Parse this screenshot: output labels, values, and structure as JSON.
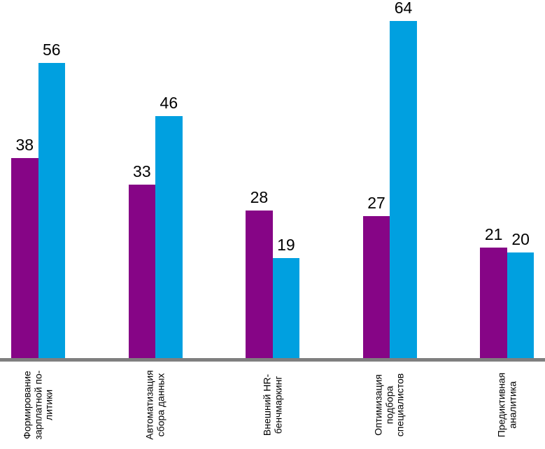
{
  "chart_data": {
    "type": "bar",
    "orientation": "vertical",
    "title": "",
    "xlabel": "",
    "ylabel": "",
    "ylim": [
      0,
      68
    ],
    "grid": false,
    "legend": "none",
    "data_labels": true,
    "category_label_rotation_deg": 90,
    "axis_line_color": "#7F7F7F",
    "text_color": "#000000",
    "categories": [
      "Формирование зарплатной политики",
      "Автоматизация сбора данных",
      "Внешний HR-бенчмаркинг",
      "Оптимизация подбора специалистов",
      "Предиктивная аналитика"
    ],
    "category_label_lines": [
      [
        "Формирование",
        "зарплатной по-",
        "литики"
      ],
      [
        "Автоматизация",
        "сбора данных"
      ],
      [
        "Внешний HR-",
        "бенчмаркинг"
      ],
      [
        "Оптимизация",
        "подбора",
        "специалистов"
      ],
      [
        "Предиктивная",
        "аналитика"
      ]
    ],
    "series": [
      {
        "name": "series-purple",
        "color": "#860586",
        "values": [
          38,
          33,
          28,
          27,
          21
        ]
      },
      {
        "name": "series-cyan",
        "color": "#00A0E0",
        "values": [
          56,
          46,
          19,
          64,
          20
        ]
      }
    ]
  }
}
